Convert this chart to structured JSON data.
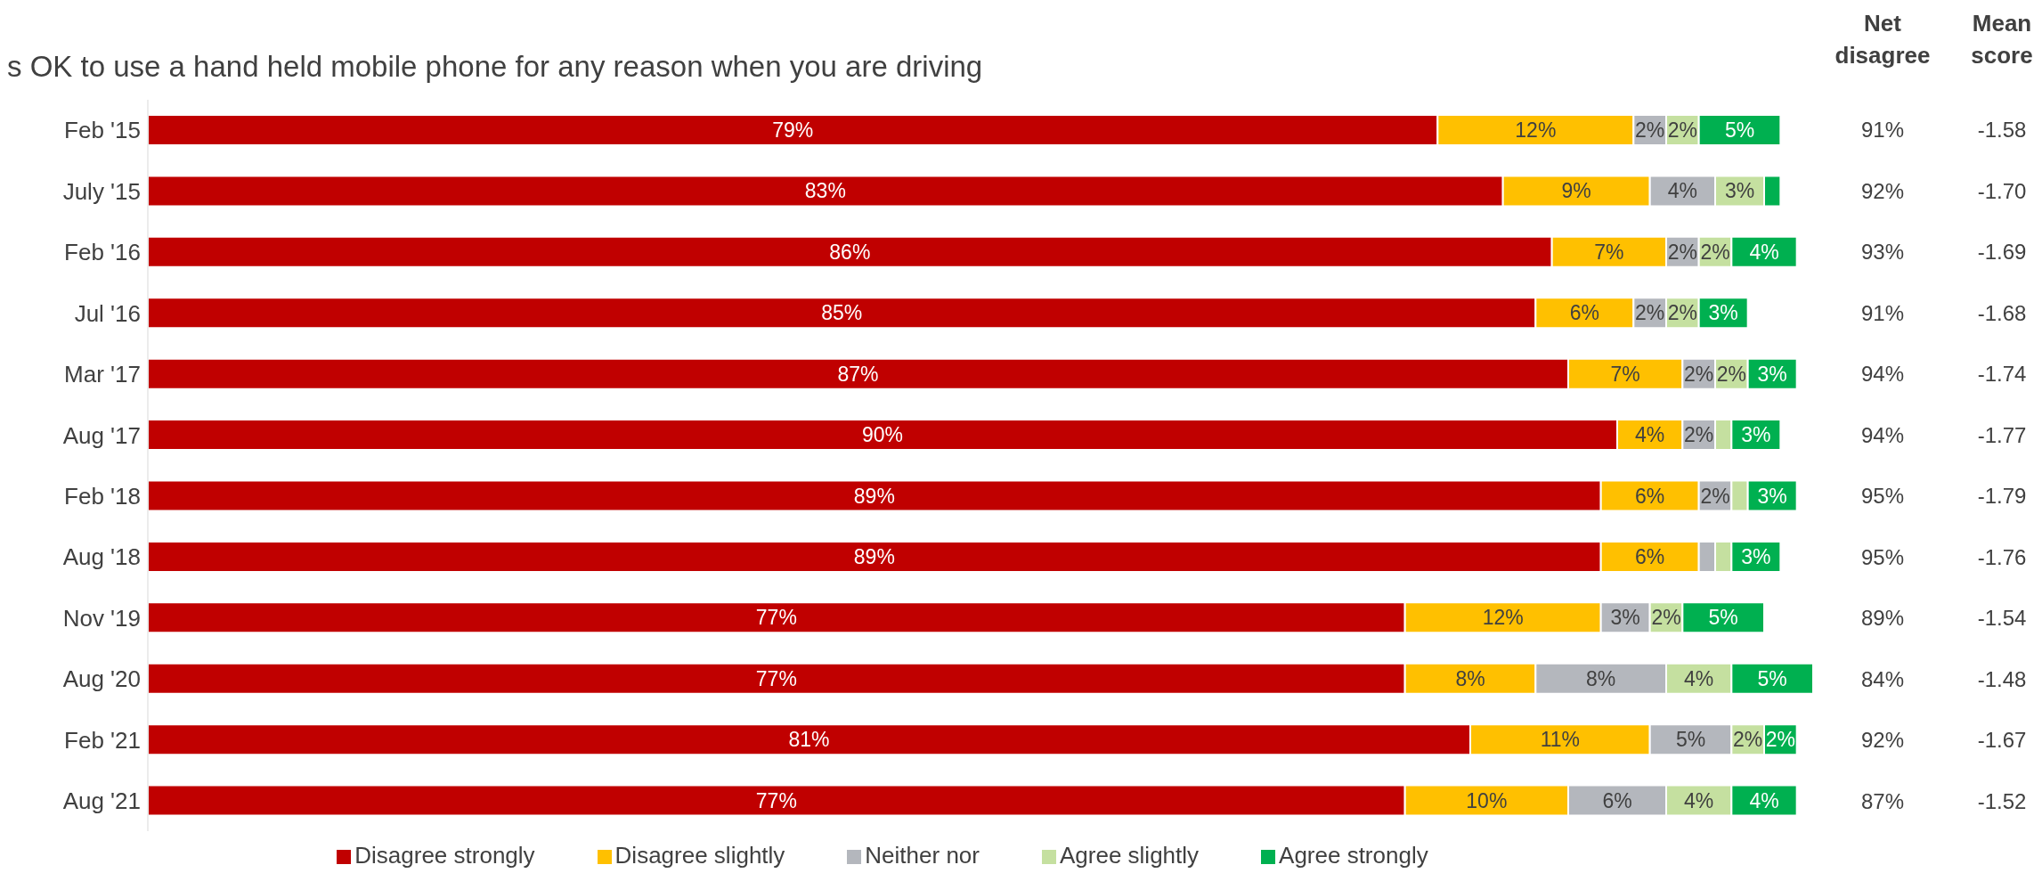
{
  "chart_data": {
    "type": "bar",
    "orientation": "horizontal",
    "stacked": true,
    "title": "s OK to use a hand held mobile phone for any reason when you are driving",
    "legend": "bottom",
    "categories": [
      "Feb '15",
      "July '15",
      "Feb '16",
      "Jul '16",
      "Mar '17",
      "Aug '17",
      "Feb '18",
      "Aug '18",
      "Nov '19",
      "Aug '20",
      "Feb '21",
      "Aug '21"
    ],
    "series": [
      {
        "name": "Disagree strongly",
        "color": "#c00000",
        "values": [
          79,
          83,
          86,
          85,
          87,
          90,
          89,
          89,
          77,
          77,
          81,
          77
        ],
        "value_labels": [
          "79%",
          "83%",
          "86%",
          "85%",
          "87%",
          "90%",
          "89%",
          "89%",
          "77%",
          "77%",
          "81%",
          "77%"
        ]
      },
      {
        "name": "Disagree slightly",
        "color": "#ffc000",
        "values": [
          12,
          9,
          7,
          6,
          7,
          4,
          6,
          6,
          12,
          8,
          11,
          10
        ],
        "value_labels": [
          "12%",
          "9%",
          "7%",
          "6%",
          "7%",
          "4%",
          "6%",
          "6%",
          "12%",
          "8%",
          "11%",
          "10%"
        ]
      },
      {
        "name": "Neither nor",
        "color": "#b4b7bd",
        "values": [
          2,
          4,
          2,
          2,
          2,
          2,
          2,
          1,
          3,
          8,
          5,
          6
        ],
        "value_labels": [
          "2%",
          "4%",
          "2%",
          "2%",
          "2%",
          "2%",
          "2%",
          null,
          "3%",
          "8%",
          "5%",
          "6%"
        ]
      },
      {
        "name": "Agree slightly",
        "color": "#c5e0a0",
        "values": [
          2,
          3,
          2,
          2,
          2,
          1,
          1,
          1,
          2,
          4,
          2,
          4
        ],
        "value_labels": [
          "2%",
          "3%",
          "2%",
          "2%",
          "2%",
          null,
          null,
          null,
          "2%",
          "4%",
          "2%",
          "4%"
        ]
      },
      {
        "name": "Agree strongly",
        "color": "#00b050",
        "values": [
          5,
          1,
          4,
          3,
          3,
          3,
          3,
          3,
          5,
          5,
          2,
          4
        ],
        "value_labels": [
          "5%",
          null,
          "4%",
          "3%",
          "3%",
          "3%",
          "3%",
          "3%",
          "5%",
          "5%",
          "2%",
          "4%"
        ]
      }
    ],
    "annotations": [
      "Net disagree",
      "Mean score",
      "91%",
      "-1.58",
      "92%",
      "-1.70",
      "93%",
      "-1.69",
      "91%",
      "-1.68",
      "94%",
      "-1.74",
      "94%",
      "-1.77",
      "95%",
      "-1.79",
      "95%",
      "-1.76",
      "89%",
      "-1.54",
      "84%",
      "-1.48",
      "92%",
      "-1.67",
      "87%",
      "-1.52"
    ]
  }
}
